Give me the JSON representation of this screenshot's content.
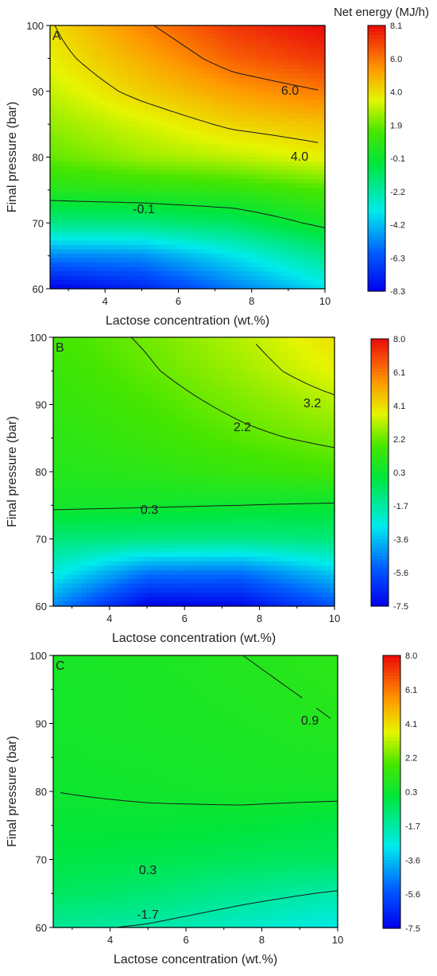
{
  "chart_data": [
    {
      "type": "contour",
      "panel_label": "A",
      "xlabel": "Lactose concentration (wt.%)",
      "ylabel": "Final pressure (bar)",
      "xlim": [
        2.5,
        10
      ],
      "ylim": [
        60,
        100
      ],
      "x_ticks": [
        4,
        6,
        8,
        10
      ],
      "y_ticks": [
        60,
        70,
        80,
        90,
        100
      ],
      "x": [
        2.5,
        5,
        7.5,
        10
      ],
      "y": [
        60,
        65,
        70,
        75,
        80,
        85,
        90,
        95,
        100
      ],
      "z": [
        [
          -8.3,
          -7.4,
          -5.4,
          -3.6
        ],
        [
          -5.2,
          -5.0,
          -3.5,
          -1.8
        ],
        [
          -1.6,
          -1.5,
          -1.0,
          0.2
        ],
        [
          0.6,
          0.8,
          1.0,
          1.6
        ],
        [
          1.9,
          2.6,
          3.0,
          3.6
        ],
        [
          2.5,
          3.3,
          4.2,
          4.6
        ],
        [
          3.1,
          4.3,
          5.3,
          6.0
        ],
        [
          3.6,
          5.0,
          6.5,
          7.3
        ],
        [
          3.9,
          5.8,
          7.3,
          8.1
        ]
      ],
      "contour_labels": [
        "6.0",
        "4.0",
        "-0.1"
      ],
      "colorbar": {
        "title": "Net energy (MJ/h)",
        "ticks": [
          "8.1",
          "6.0",
          "4.0",
          "1.9",
          "-0.1",
          "-2.2",
          "-4.2",
          "-6.3",
          "-8.3"
        ],
        "min": -8.3,
        "max": 8.1
      }
    },
    {
      "type": "contour",
      "panel_label": "B",
      "xlabel": "Lactose concentration (wt.%)",
      "ylabel": "Final pressure (bar)",
      "xlim": [
        2.5,
        10
      ],
      "ylim": [
        60,
        100
      ],
      "x_ticks": [
        4,
        6,
        8,
        10
      ],
      "y_ticks": [
        60,
        70,
        80,
        90,
        100
      ],
      "x": [
        2.5,
        5,
        7.5,
        10
      ],
      "y": [
        60,
        65,
        70,
        75,
        80,
        85,
        90,
        95,
        100
      ],
      "z": [
        [
          -4.5,
          -7.5,
          -7.3,
          -5.5
        ],
        [
          -2.6,
          -4.8,
          -4.9,
          -3.4
        ],
        [
          -1.0,
          -1.1,
          -1.2,
          -1.0
        ],
        [
          0.5,
          0.4,
          0.3,
          0.2
        ],
        [
          0.9,
          1.1,
          1.4,
          1.7
        ],
        [
          1.1,
          1.5,
          2.0,
          2.4
        ],
        [
          1.3,
          1.8,
          2.4,
          3.0
        ],
        [
          1.5,
          2.1,
          2.8,
          3.7
        ],
        [
          1.7,
          2.3,
          3.1,
          4.1
        ]
      ],
      "contour_labels": [
        "3.2",
        "2.2",
        "0.3"
      ],
      "colorbar": {
        "title": "",
        "ticks": [
          "8.0",
          "6.1",
          "4.1",
          "2.2",
          "0.3",
          "-1.7",
          "-3.6",
          "-5.6",
          "-7.5"
        ],
        "min": -7.5,
        "max": 8.0
      }
    },
    {
      "type": "contour",
      "panel_label": "C",
      "xlabel": "Lactose concentration (wt.%)",
      "ylabel": "Final pressure (bar)",
      "xlim": [
        2.5,
        10
      ],
      "ylim": [
        60,
        100
      ],
      "x_ticks": [
        4,
        6,
        8,
        10
      ],
      "y_ticks": [
        60,
        70,
        80,
        90,
        100
      ],
      "x": [
        2.5,
        5,
        7.5,
        10
      ],
      "y": [
        60,
        65,
        70,
        75,
        80,
        85,
        90,
        95,
        100
      ],
      "z": [
        [
          -1.5,
          -1.8,
          -2.3,
          -2.8
        ],
        [
          -0.6,
          -0.9,
          -1.4,
          -1.8
        ],
        [
          -0.2,
          -0.3,
          -0.5,
          -0.6
        ],
        [
          0.1,
          0.1,
          0.0,
          -0.2
        ],
        [
          0.3,
          0.4,
          0.5,
          0.5
        ],
        [
          0.4,
          0.5,
          0.6,
          0.7
        ],
        [
          0.5,
          0.6,
          0.7,
          0.9
        ],
        [
          0.5,
          0.6,
          0.8,
          1.0
        ],
        [
          0.6,
          0.7,
          0.9,
          1.1
        ]
      ],
      "contour_labels": [
        "0.9",
        "0.3",
        "-1.7"
      ],
      "colorbar": {
        "title": "",
        "ticks": [
          "8.0",
          "6.1",
          "4.1",
          "2.2",
          "0.3",
          "-1.7",
          "-3.6",
          "-5.6",
          "-7.5"
        ],
        "min": -7.5,
        "max": 8.0
      }
    }
  ]
}
